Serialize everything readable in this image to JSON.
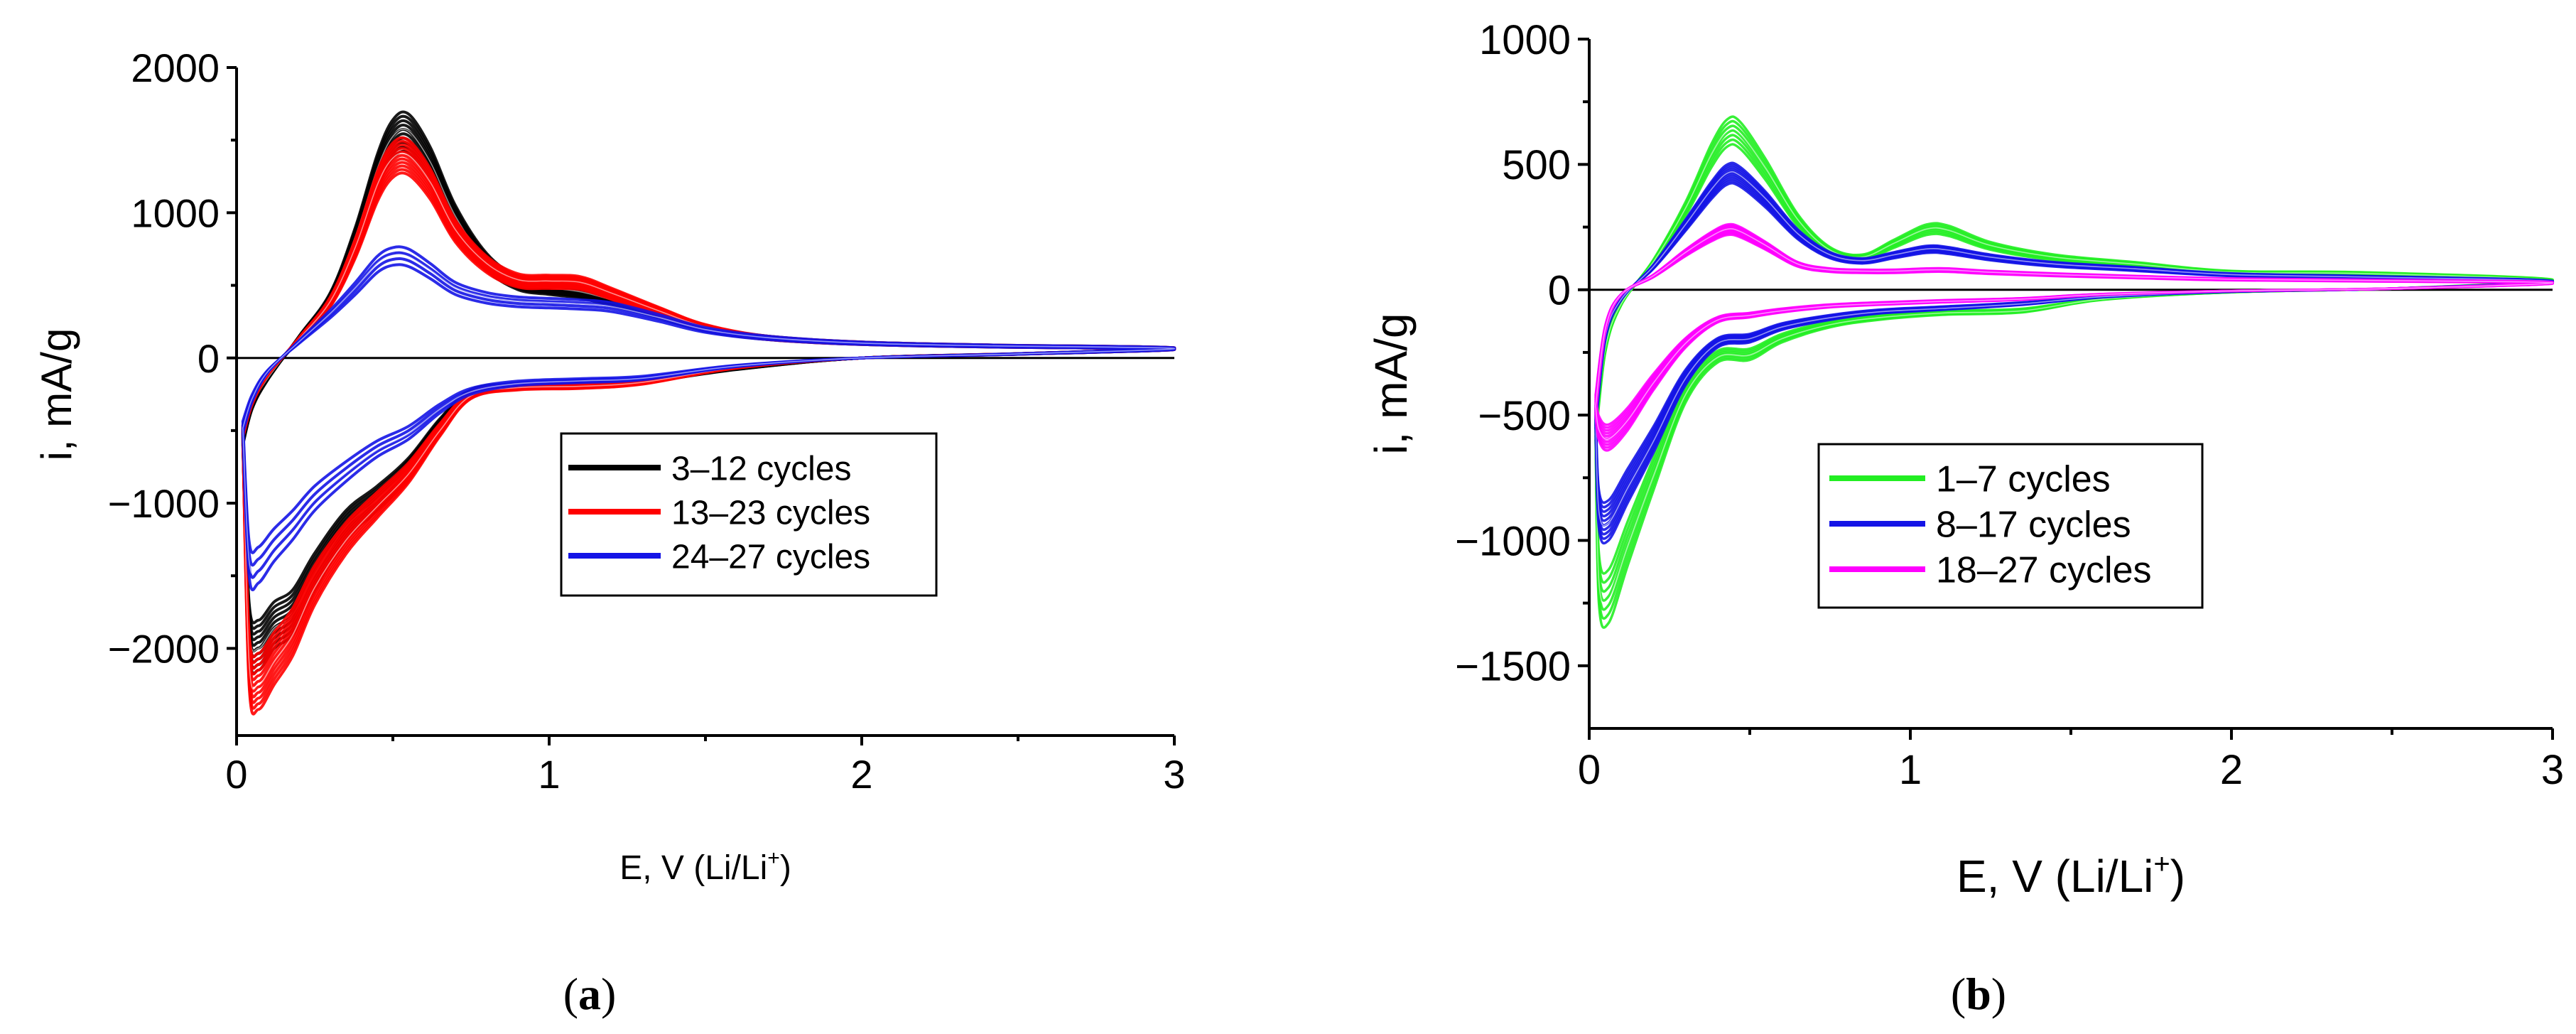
{
  "chart_data": [
    {
      "type": "line",
      "panel_label": "(a)",
      "panel_letter": "a",
      "xlabel": "E, V (Li/Li⁺)",
      "xlabel_main": "E, V (Li/Li",
      "xlabel_sup": "+",
      "xlabel_end": ")",
      "ylabel": "i, mA/g",
      "xlim": [
        0,
        3
      ],
      "ylim": [
        -2600,
        2000
      ],
      "xticks": [
        0,
        1,
        2,
        3
      ],
      "xtick_labels": [
        "0",
        "1",
        "2",
        "3"
      ],
      "yticks": [
        2000,
        1000,
        0,
        -1000,
        -2000
      ],
      "ytick_labels": [
        "2000",
        "1000",
        "0",
        "−1000",
        "−2000"
      ],
      "legend_position": "center-right",
      "series": [
        {
          "name": "3–12 cycles",
          "color": "#000000",
          "n_curves": 10,
          "anodic": [
            [
              0.02,
              -600
            ],
            [
              0.05,
              -350
            ],
            [
              0.1,
              -150
            ],
            [
              0.2,
              150
            ],
            [
              0.3,
              450
            ],
            [
              0.38,
              900
            ],
            [
              0.45,
              1400
            ],
            [
              0.5,
              1640
            ],
            [
              0.55,
              1680
            ],
            [
              0.62,
              1450
            ],
            [
              0.7,
              1050
            ],
            [
              0.8,
              720
            ],
            [
              0.9,
              560
            ],
            [
              1.0,
              520
            ],
            [
              1.1,
              490
            ],
            [
              1.2,
              430
            ],
            [
              1.35,
              330
            ],
            [
              1.5,
              220
            ],
            [
              1.7,
              150
            ],
            [
              2.0,
              110
            ],
            [
              2.4,
              90
            ],
            [
              3.0,
              70
            ]
          ],
          "cathodic": [
            [
              3.0,
              50
            ],
            [
              2.5,
              30
            ],
            [
              2.0,
              0
            ],
            [
              1.6,
              -80
            ],
            [
              1.3,
              -170
            ],
            [
              1.1,
              -200
            ],
            [
              0.9,
              -210
            ],
            [
              0.75,
              -260
            ],
            [
              0.65,
              -500
            ],
            [
              0.55,
              -820
            ],
            [
              0.45,
              -1050
            ],
            [
              0.35,
              -1250
            ],
            [
              0.25,
              -1600
            ],
            [
              0.18,
              -1900
            ],
            [
              0.12,
              -2000
            ],
            [
              0.07,
              -2150
            ],
            [
              0.04,
              -2000
            ],
            [
              0.02,
              -600
            ]
          ]
        },
        {
          "name": "13–23 cycles",
          "color": "#ff0000",
          "n_curves": 11,
          "anodic": [
            [
              0.02,
              -550
            ],
            [
              0.05,
              -320
            ],
            [
              0.1,
              -120
            ],
            [
              0.2,
              140
            ],
            [
              0.3,
              420
            ],
            [
              0.38,
              820
            ],
            [
              0.45,
              1280
            ],
            [
              0.5,
              1480
            ],
            [
              0.55,
              1500
            ],
            [
              0.62,
              1300
            ],
            [
              0.7,
              950
            ],
            [
              0.8,
              700
            ],
            [
              0.9,
              580
            ],
            [
              1.0,
              570
            ],
            [
              1.1,
              560
            ],
            [
              1.2,
              480
            ],
            [
              1.35,
              350
            ],
            [
              1.5,
              230
            ],
            [
              1.7,
              150
            ],
            [
              2.0,
              110
            ],
            [
              2.4,
              90
            ],
            [
              3.0,
              70
            ]
          ],
          "cathodic": [
            [
              3.0,
              50
            ],
            [
              2.5,
              30
            ],
            [
              2.0,
              0
            ],
            [
              1.6,
              -70
            ],
            [
              1.3,
              -180
            ],
            [
              1.1,
              -210
            ],
            [
              0.9,
              -220
            ],
            [
              0.75,
              -280
            ],
            [
              0.65,
              -540
            ],
            [
              0.55,
              -860
            ],
            [
              0.45,
              -1100
            ],
            [
              0.35,
              -1350
            ],
            [
              0.25,
              -1700
            ],
            [
              0.18,
              -2050
            ],
            [
              0.12,
              -2250
            ],
            [
              0.07,
              -2420
            ],
            [
              0.04,
              -2250
            ],
            [
              0.02,
              -550
            ]
          ]
        },
        {
          "name": "24–27 cycles",
          "color": "#1414e6",
          "n_curves": 4,
          "anodic": [
            [
              0.02,
              -520
            ],
            [
              0.05,
              -300
            ],
            [
              0.1,
              -100
            ],
            [
              0.2,
              120
            ],
            [
              0.3,
              330
            ],
            [
              0.38,
              520
            ],
            [
              0.45,
              700
            ],
            [
              0.5,
              760
            ],
            [
              0.55,
              750
            ],
            [
              0.62,
              650
            ],
            [
              0.7,
              520
            ],
            [
              0.8,
              450
            ],
            [
              0.9,
              420
            ],
            [
              1.0,
              410
            ],
            [
              1.1,
              400
            ],
            [
              1.2,
              380
            ],
            [
              1.35,
              300
            ],
            [
              1.5,
              210
            ],
            [
              1.7,
              150
            ],
            [
              2.0,
              110
            ],
            [
              2.4,
              90
            ],
            [
              3.0,
              70
            ]
          ],
          "cathodic": [
            [
              3.0,
              50
            ],
            [
              2.5,
              30
            ],
            [
              2.0,
              0
            ],
            [
              1.6,
              -60
            ],
            [
              1.3,
              -150
            ],
            [
              1.1,
              -170
            ],
            [
              0.9,
              -190
            ],
            [
              0.75,
              -250
            ],
            [
              0.65,
              -380
            ],
            [
              0.55,
              -560
            ],
            [
              0.45,
              -680
            ],
            [
              0.35,
              -850
            ],
            [
              0.25,
              -1050
            ],
            [
              0.18,
              -1250
            ],
            [
              0.12,
              -1400
            ],
            [
              0.07,
              -1550
            ],
            [
              0.04,
              -1500
            ],
            [
              0.02,
              -520
            ]
          ]
        }
      ]
    },
    {
      "type": "line",
      "panel_label": "(b)",
      "panel_letter": "b",
      "xlabel": "E, V (Li/Li⁺)",
      "xlabel_main": "E, V (Li/Li",
      "xlabel_sup": "+",
      "xlabel_end": ")",
      "ylabel": "i, mA/g",
      "xlim": [
        0,
        3
      ],
      "ylim": [
        -1750,
        1000
      ],
      "xticks": [
        0,
        1,
        2,
        3
      ],
      "xtick_labels": [
        "0",
        "1",
        "2",
        "3"
      ],
      "yticks": [
        1000,
        500,
        0,
        -500,
        -1000,
        -1500
      ],
      "ytick_labels": [
        "1000",
        "500",
        "0",
        "−500",
        "−1000",
        "−1500"
      ],
      "legend_position": "lower-center",
      "series": [
        {
          "name": "1–7 cycles",
          "color": "#22ee22",
          "n_curves": 7,
          "anodic": [
            [
              0.02,
              -600
            ],
            [
              0.05,
              -250
            ],
            [
              0.1,
              -60
            ],
            [
              0.2,
              120
            ],
            [
              0.3,
              350
            ],
            [
              0.38,
              580
            ],
            [
              0.43,
              680
            ],
            [
              0.47,
              670
            ],
            [
              0.55,
              520
            ],
            [
              0.65,
              300
            ],
            [
              0.75,
              170
            ],
            [
              0.85,
              140
            ],
            [
              0.95,
              200
            ],
            [
              1.05,
              260
            ],
            [
              1.12,
              255
            ],
            [
              1.25,
              190
            ],
            [
              1.45,
              140
            ],
            [
              1.7,
              110
            ],
            [
              2.0,
              75
            ],
            [
              2.4,
              70
            ],
            [
              3.0,
              40
            ]
          ],
          "cathodic": [
            [
              3.0,
              25
            ],
            [
              2.5,
              5
            ],
            [
              2.0,
              -10
            ],
            [
              1.6,
              -40
            ],
            [
              1.35,
              -90
            ],
            [
              1.1,
              -100
            ],
            [
              0.9,
              -120
            ],
            [
              0.75,
              -150
            ],
            [
              0.6,
              -210
            ],
            [
              0.5,
              -280
            ],
            [
              0.4,
              -290
            ],
            [
              0.3,
              -450
            ],
            [
              0.2,
              -800
            ],
            [
              0.12,
              -1100
            ],
            [
              0.06,
              -1330
            ],
            [
              0.03,
              -1250
            ],
            [
              0.02,
              -600
            ]
          ]
        },
        {
          "name": "8–17 cycles",
          "color": "#1414e6",
          "n_curves": 10,
          "anodic": [
            [
              0.02,
              -550
            ],
            [
              0.05,
              -200
            ],
            [
              0.1,
              -40
            ],
            [
              0.2,
              100
            ],
            [
              0.3,
              280
            ],
            [
              0.38,
              430
            ],
            [
              0.43,
              500
            ],
            [
              0.47,
              490
            ],
            [
              0.55,
              390
            ],
            [
              0.65,
              240
            ],
            [
              0.75,
              150
            ],
            [
              0.85,
              125
            ],
            [
              0.95,
              150
            ],
            [
              1.05,
              175
            ],
            [
              1.12,
              170
            ],
            [
              1.25,
              140
            ],
            [
              1.45,
              110
            ],
            [
              1.7,
              90
            ],
            [
              2.0,
              65
            ],
            [
              2.4,
              55
            ],
            [
              3.0,
              35
            ]
          ],
          "cathodic": [
            [
              3.0,
              20
            ],
            [
              2.5,
              5
            ],
            [
              2.0,
              -8
            ],
            [
              1.6,
              -30
            ],
            [
              1.35,
              -60
            ],
            [
              1.1,
              -80
            ],
            [
              0.9,
              -95
            ],
            [
              0.75,
              -120
            ],
            [
              0.6,
              -160
            ],
            [
              0.5,
              -210
            ],
            [
              0.4,
              -230
            ],
            [
              0.3,
              -380
            ],
            [
              0.2,
              -650
            ],
            [
              0.12,
              -850
            ],
            [
              0.06,
              -1000
            ],
            [
              0.03,
              -950
            ],
            [
              0.02,
              -550
            ]
          ]
        },
        {
          "name": "18–27 cycles",
          "color": "#ff00ff",
          "n_curves": 10,
          "anodic": [
            [
              0.02,
              -500
            ],
            [
              0.05,
              -170
            ],
            [
              0.1,
              -20
            ],
            [
              0.2,
              60
            ],
            [
              0.3,
              160
            ],
            [
              0.38,
              230
            ],
            [
              0.43,
              260
            ],
            [
              0.47,
              250
            ],
            [
              0.55,
              190
            ],
            [
              0.65,
              110
            ],
            [
              0.75,
              85
            ],
            [
              0.85,
              80
            ],
            [
              0.95,
              80
            ],
            [
              1.05,
              85
            ],
            [
              1.12,
              85
            ],
            [
              1.25,
              75
            ],
            [
              1.45,
              65
            ],
            [
              1.7,
              55
            ],
            [
              2.0,
              45
            ],
            [
              2.4,
              40
            ],
            [
              3.0,
              30
            ]
          ],
          "cathodic": [
            [
              3.0,
              15
            ],
            [
              2.5,
              5
            ],
            [
              2.0,
              -5
            ],
            [
              1.6,
              -20
            ],
            [
              1.35,
              -40
            ],
            [
              1.1,
              -50
            ],
            [
              0.9,
              -60
            ],
            [
              0.75,
              -70
            ],
            [
              0.6,
              -90
            ],
            [
              0.5,
              -110
            ],
            [
              0.4,
              -130
            ],
            [
              0.3,
              -230
            ],
            [
              0.2,
              -400
            ],
            [
              0.12,
              -560
            ],
            [
              0.06,
              -640
            ],
            [
              0.03,
              -600
            ],
            [
              0.02,
              -500
            ]
          ]
        }
      ]
    }
  ]
}
